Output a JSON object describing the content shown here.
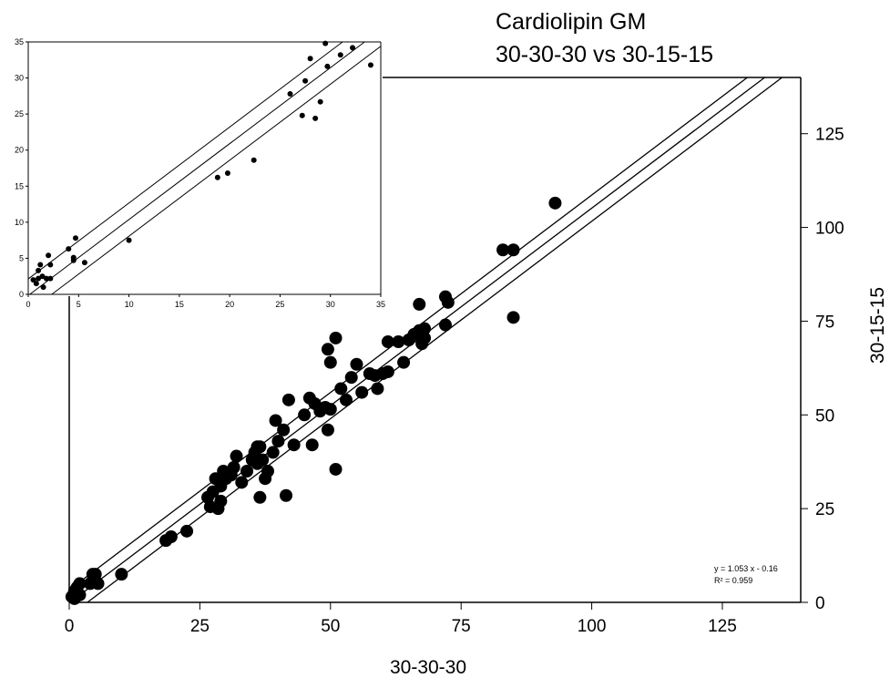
{
  "chart_data": [
    {
      "type": "scatter",
      "title_lines": [
        "Cardiolipin GM",
        "30-30-30 vs 30-15-15"
      ],
      "xlabel": "30-30-30",
      "ylabel": "30-15-15",
      "xlim": [
        0,
        140
      ],
      "ylim": [
        0,
        140
      ],
      "x_ticks": [
        "0",
        "25",
        "50",
        "75",
        "100",
        "125"
      ],
      "y_ticks": [
        "0",
        "25",
        "50",
        "75",
        "100",
        "125"
      ],
      "grid": false,
      "equation": "y = 1.053 x - 0.16",
      "r_squared": "R² = 0.959",
      "regression": {
        "slope": 1.053,
        "intercept": -0.16,
        "band": 3.5
      },
      "points": [
        [
          0.5,
          1.5
        ],
        [
          1,
          1
        ],
        [
          1,
          3
        ],
        [
          1.5,
          4
        ],
        [
          2,
          2
        ],
        [
          2,
          5
        ],
        [
          1.5,
          2.5
        ],
        [
          4.5,
          7.5
        ],
        [
          5,
          7.5
        ],
        [
          5.5,
          5
        ],
        [
          4,
          5
        ],
        [
          10,
          7.5
        ],
        [
          18.5,
          16.5
        ],
        [
          19.5,
          17.5
        ],
        [
          22.5,
          19
        ],
        [
          26.5,
          28
        ],
        [
          27,
          25.5
        ],
        [
          27.5,
          29.5
        ],
        [
          28,
          33
        ],
        [
          28.5,
          25
        ],
        [
          29,
          27
        ],
        [
          29,
          31
        ],
        [
          29.5,
          35
        ],
        [
          30,
          33
        ],
        [
          31,
          34
        ],
        [
          31.5,
          36
        ],
        [
          32,
          39
        ],
        [
          33,
          32
        ],
        [
          34,
          35
        ],
        [
          35,
          38
        ],
        [
          35.5,
          40
        ],
        [
          36,
          41.5
        ],
        [
          36,
          37
        ],
        [
          36.5,
          28
        ],
        [
          36.5,
          41.5
        ],
        [
          37,
          38
        ],
        [
          37.5,
          33
        ],
        [
          38,
          35
        ],
        [
          39,
          40
        ],
        [
          39.5,
          48.5
        ],
        [
          40,
          43
        ],
        [
          41,
          46
        ],
        [
          41.5,
          28.5
        ],
        [
          42,
          54
        ],
        [
          43,
          42
        ],
        [
          45,
          50
        ],
        [
          46,
          54.5
        ],
        [
          46.5,
          42
        ],
        [
          47,
          53
        ],
        [
          48,
          51
        ],
        [
          49,
          52
        ],
        [
          49.5,
          67.5
        ],
        [
          49.5,
          46
        ],
        [
          50,
          64
        ],
        [
          50,
          51.5
        ],
        [
          51,
          70.5
        ],
        [
          51,
          35.5
        ],
        [
          52,
          57
        ],
        [
          53,
          54
        ],
        [
          54,
          60
        ],
        [
          55,
          63.5
        ],
        [
          56,
          56
        ],
        [
          57.5,
          61
        ],
        [
          58.5,
          60.5
        ],
        [
          59,
          57
        ],
        [
          60,
          61
        ],
        [
          61,
          61.5
        ],
        [
          61,
          69.5
        ],
        [
          63,
          69.5
        ],
        [
          64,
          64
        ],
        [
          65,
          70
        ],
        [
          66,
          71.5
        ],
        [
          67,
          72.5
        ],
        [
          67,
          79.5
        ],
        [
          67.5,
          69
        ],
        [
          68,
          70.5
        ],
        [
          68,
          73
        ],
        [
          72,
          81.5
        ],
        [
          72,
          74
        ],
        [
          72.5,
          80
        ],
        [
          83,
          94
        ],
        [
          85,
          94
        ],
        [
          85,
          76
        ],
        [
          93,
          106.5
        ]
      ]
    },
    {
      "type": "scatter",
      "note_inset": true,
      "xlim": [
        0,
        35
      ],
      "ylim": [
        0,
        35
      ],
      "x_ticks": [
        "0",
        "5",
        "10",
        "15",
        "20",
        "25",
        "30",
        "35"
      ],
      "y_ticks": [
        "0",
        "5",
        "10",
        "15",
        "20",
        "25",
        "30",
        "35"
      ],
      "regression": {
        "slope": 1.053,
        "intercept": -0.16,
        "band": 2.3
      },
      "points": [
        [
          0.5,
          2
        ],
        [
          0.8,
          1.5
        ],
        [
          1,
          2.2
        ],
        [
          1,
          3.3
        ],
        [
          1.2,
          4.1
        ],
        [
          1.4,
          2.5
        ],
        [
          1.5,
          1
        ],
        [
          1.8,
          2.2
        ],
        [
          2,
          5.4
        ],
        [
          2.2,
          2.2
        ],
        [
          2.2,
          4.1
        ],
        [
          4,
          6.3
        ],
        [
          4.5,
          5.1
        ],
        [
          4.5,
          4.7
        ],
        [
          4.7,
          7.8
        ],
        [
          5.6,
          4.4
        ],
        [
          10,
          7.5
        ],
        [
          18.8,
          16.2
        ],
        [
          19.8,
          16.8
        ],
        [
          22.4,
          18.6
        ],
        [
          26,
          27.8
        ],
        [
          27.2,
          24.8
        ],
        [
          27.5,
          29.6
        ],
        [
          28,
          32.7
        ],
        [
          28.5,
          24.4
        ],
        [
          29,
          26.7
        ],
        [
          29.5,
          34.8
        ],
        [
          29.7,
          31.6
        ],
        [
          31,
          33.2
        ],
        [
          32.2,
          34.2
        ],
        [
          34,
          31.8
        ]
      ]
    }
  ]
}
